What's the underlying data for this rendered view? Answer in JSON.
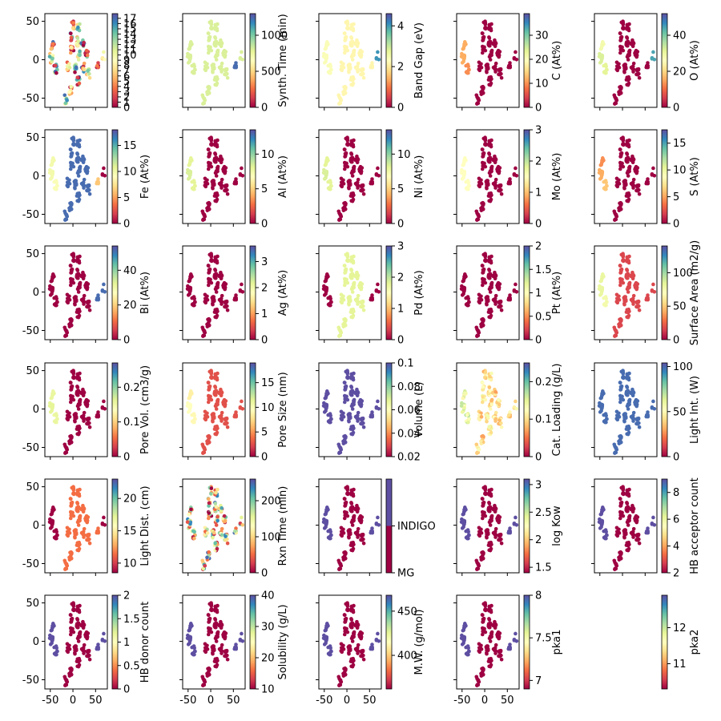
{
  "chart_data": {
    "type": "scatter",
    "x_ticks": [
      -50,
      0,
      50
    ],
    "y_ticks": [
      -50,
      0,
      50
    ],
    "xlim": [
      -62,
      76
    ],
    "ylim": [
      -62,
      60
    ],
    "panels": [
      {
        "label": "",
        "cmin": 0,
        "cmax": 17.9,
        "ticks": [
          0,
          1,
          2,
          3,
          4,
          5,
          6,
          7,
          8,
          9,
          10,
          11,
          12,
          13,
          14,
          15,
          16,
          17
        ],
        "mode": "cluster"
      },
      {
        "label": "Synth. Time (min)",
        "cmin": 0,
        "cmax": 1300,
        "ticks": [
          0,
          500,
          1000
        ],
        "mode": "const",
        "values": [
          0.62,
          0.62,
          0.62,
          0.62,
          0.62,
          0.62,
          0.62,
          0.62,
          0.62,
          0.62,
          0.62,
          0.62,
          0.62,
          0.62,
          0.62,
          0.62,
          0.62,
          0.62,
          0.95,
          0.62
        ]
      },
      {
        "label": "Band Gap (eV)",
        "cmin": 0,
        "cmax": 4.6,
        "ticks": [
          0,
          2,
          4
        ],
        "mode": "const",
        "values": [
          0.47,
          0.47,
          0.47,
          0.47,
          0.47,
          0.47,
          0.47,
          0.47,
          0.47,
          0.47,
          0.47,
          0.47,
          0.47,
          0.47,
          0.47,
          0.52,
          0.52,
          0.52,
          0.47,
          0.88
        ]
      },
      {
        "label": "C (At%)",
        "cmin": 0,
        "cmax": 39,
        "ticks": [
          0,
          10,
          20,
          30
        ],
        "mode": "const",
        "values": [
          0,
          0,
          0,
          0,
          0,
          0,
          0,
          0,
          0,
          0,
          0,
          0,
          0,
          0,
          0,
          0.3,
          0.3,
          0.25,
          0,
          0
        ]
      },
      {
        "label": "O (At%)",
        "cmin": 0,
        "cmax": 52,
        "ticks": [
          0,
          20,
          40
        ],
        "mode": "const",
        "values": [
          0,
          0,
          0,
          0,
          0,
          0,
          0,
          0,
          0,
          0,
          0,
          0,
          0,
          0,
          0,
          0.55,
          0.62,
          0.6,
          0,
          0.85
        ]
      },
      {
        "label": "Fe (At%)",
        "cmin": 0,
        "cmax": 18,
        "ticks": [
          0,
          5,
          10,
          15
        ],
        "mode": "const",
        "values": [
          0.95,
          0.95,
          0.95,
          0.95,
          0.95,
          0.95,
          0.95,
          0.95,
          0.95,
          0.95,
          0.95,
          0.95,
          0.95,
          0.95,
          0.95,
          0.55,
          0.55,
          0.52,
          0.35,
          0
        ]
      },
      {
        "label": "Al (At%)",
        "cmin": 0,
        "cmax": 13.5,
        "ticks": [
          0,
          5,
          10
        ],
        "mode": "const",
        "values": [
          0,
          0,
          0,
          0,
          0,
          0,
          0,
          0,
          0,
          0,
          0,
          0,
          0,
          0,
          0,
          0.6,
          0.62,
          0.6,
          0,
          0
        ]
      },
      {
        "label": "Ni (At%)",
        "cmin": 0,
        "cmax": 13.5,
        "ticks": [
          0,
          5,
          10
        ],
        "mode": "const",
        "values": [
          0,
          0,
          0,
          0,
          0,
          0,
          0,
          0,
          0,
          0,
          0,
          0,
          0,
          0,
          0,
          0.6,
          0.62,
          0.6,
          0,
          0
        ]
      },
      {
        "label": "Mo (At%)",
        "cmin": 0,
        "cmax": 3,
        "ticks": [
          0,
          1,
          2,
          3
        ],
        "mode": "const",
        "values": [
          0,
          0,
          0,
          0,
          0,
          0,
          0,
          0,
          0,
          0,
          0,
          0,
          0,
          0,
          0,
          0.5,
          0.5,
          0.5,
          0,
          0
        ]
      },
      {
        "label": "S (At%)",
        "cmin": 0,
        "cmax": 17.5,
        "ticks": [
          0,
          5,
          10,
          15
        ],
        "mode": "const",
        "values": [
          0,
          0,
          0,
          0,
          0,
          0,
          0,
          0,
          0,
          0,
          0,
          0,
          0,
          0,
          0,
          0.25,
          0.3,
          0.35,
          0,
          0
        ]
      },
      {
        "label": "Bi (At%)",
        "cmin": 0,
        "cmax": 54,
        "ticks": [
          0,
          20,
          40
        ],
        "mode": "const",
        "values": [
          0,
          0,
          0,
          0,
          0,
          0,
          0,
          0,
          0,
          0,
          0,
          0,
          0,
          0,
          0,
          0,
          0,
          0,
          0.95,
          0.95
        ]
      },
      {
        "label": "Ag (At%)",
        "cmin": 0,
        "cmax": 3.6,
        "ticks": [
          0,
          1,
          2,
          3
        ],
        "mode": "const",
        "values": [
          0,
          0,
          0,
          0,
          0,
          0,
          0,
          0,
          0,
          0,
          0,
          0,
          0,
          0,
          0,
          0,
          0,
          0,
          0,
          0
        ]
      },
      {
        "label": "Pd (At%)",
        "cmin": 0,
        "cmax": 3,
        "ticks": [
          0,
          1,
          2,
          3
        ],
        "mode": "const",
        "values": [
          0.6,
          0.6,
          0.6,
          0.6,
          0.6,
          0.6,
          0.6,
          0.6,
          0.6,
          0.6,
          0.6,
          0.6,
          0.6,
          0.6,
          0.6,
          0,
          0,
          0,
          0,
          0
        ]
      },
      {
        "label": "Pt (At%)",
        "cmin": 0,
        "cmax": 2,
        "ticks": [
          0,
          0.5,
          1,
          1.5,
          2
        ],
        "mode": "const",
        "values": [
          0,
          0,
          0,
          0,
          0,
          0,
          0,
          0,
          0,
          0,
          0,
          0,
          0,
          0,
          0,
          0,
          0,
          0,
          0,
          0
        ]
      },
      {
        "label": "Surface Area (m2/g)",
        "cmin": 0,
        "cmax": 140,
        "ticks": [
          0,
          50,
          100
        ],
        "mode": "const",
        "values": [
          0.12,
          0.12,
          0.12,
          0.12,
          0.12,
          0.12,
          0.12,
          0.12,
          0.12,
          0.12,
          0.12,
          0.12,
          0.12,
          0.12,
          0.12,
          0.58,
          0.58,
          0.55,
          0.12,
          0.12
        ]
      },
      {
        "label": "Pore Vol. (cm3/g)",
        "cmin": 0,
        "cmax": 0.27,
        "ticks": [
          0,
          0.1,
          0.2
        ],
        "mode": "const",
        "values": [
          0,
          0,
          0,
          0,
          0,
          0,
          0,
          0,
          0,
          0,
          0,
          0,
          0,
          0,
          0,
          0.58,
          0.6,
          0.58,
          0,
          0
        ]
      },
      {
        "label": "Pore Size (nm)",
        "cmin": 0,
        "cmax": 19,
        "ticks": [
          0,
          5,
          10,
          15
        ],
        "mode": "const",
        "values": [
          0.14,
          0.14,
          0.14,
          0.14,
          0.14,
          0.14,
          0.14,
          0.14,
          0.14,
          0.14,
          0.14,
          0.14,
          0.14,
          0.14,
          0.14,
          0.45,
          0.5,
          0.48,
          0.14,
          0.14
        ]
      },
      {
        "label": "Volume (L)",
        "cmin": 0.02,
        "cmax": 0.1,
        "ticks": [
          0.02,
          0.04,
          0.06,
          0.08,
          0.1
        ],
        "mode": "const",
        "values": [
          1,
          1,
          1,
          1,
          1,
          1,
          1,
          1,
          1,
          1,
          1,
          1,
          1,
          1,
          1,
          1,
          1,
          1,
          1,
          1
        ]
      },
      {
        "label": "Cat. Loading (g/L)",
        "cmin": 0,
        "cmax": 0.25,
        "ticks": [
          0,
          0.1,
          0.2
        ],
        "mode": "const",
        "values": [
          0.38,
          0.45,
          0.5,
          0.42,
          0.36,
          0.48,
          0.4,
          0.44,
          0.38,
          0.46,
          0.42,
          0.4,
          0.48,
          0.36,
          0.44,
          0.55,
          0.58,
          0.6,
          0.4,
          0.45
        ]
      },
      {
        "label": "Light Int. (W)",
        "cmin": 0,
        "cmax": 104,
        "ticks": [
          0,
          50,
          100
        ],
        "mode": "const",
        "values": [
          0.95,
          0.95,
          0.95,
          0.95,
          0.95,
          0.95,
          0.95,
          0.95,
          0.95,
          0.95,
          0.95,
          0.95,
          0.95,
          0.95,
          0.95,
          0.95,
          0.95,
          0.95,
          0.95,
          0.95
        ]
      },
      {
        "label": "Light Dist. (cm)",
        "cmin": 8.5,
        "cmax": 23,
        "ticks": [
          10,
          15,
          20
        ],
        "mode": "const",
        "values": [
          0.2,
          0.2,
          0.2,
          0.2,
          0.2,
          0.2,
          0.2,
          0.2,
          0.2,
          0.2,
          0.2,
          0.2,
          0.2,
          0.2,
          0.2,
          0,
          0,
          0,
          0.2,
          0
        ]
      },
      {
        "label": "Rxn Time (min)",
        "cmin": 0,
        "cmax": 260,
        "ticks": [
          0,
          100,
          200
        ],
        "mode": "cluster"
      },
      {
        "label": "",
        "cmin": 0,
        "cmax": 1,
        "ticks": [],
        "categories": [
          "MG",
          "INDIGO"
        ],
        "mode": "const",
        "values": [
          0,
          0,
          0,
          0,
          0,
          0,
          0,
          0,
          0,
          0,
          0,
          0,
          0,
          0,
          0,
          1,
          1,
          1,
          1,
          1
        ]
      },
      {
        "label": "log Kow",
        "cmin": 1.4,
        "cmax": 3.1,
        "ticks": [
          1.5,
          2,
          2.5,
          3
        ],
        "mode": "const",
        "values": [
          0,
          0,
          0,
          0,
          0,
          0,
          0,
          0,
          0,
          0,
          0,
          0,
          0,
          0,
          0,
          1,
          1,
          1,
          1,
          1
        ]
      },
      {
        "label": "HB acceptor count",
        "cmin": 2,
        "cmax": 9,
        "ticks": [
          2,
          4,
          6,
          8
        ],
        "mode": "const",
        "values": [
          0,
          0,
          0,
          0,
          0,
          0,
          0,
          0,
          0,
          0,
          0,
          0,
          0,
          0,
          0,
          1,
          1,
          1,
          1,
          1
        ]
      },
      {
        "label": "HB donor count",
        "cmin": 0,
        "cmax": 2,
        "ticks": [
          0,
          0.5,
          1,
          1.5,
          2
        ],
        "mode": "const",
        "values": [
          0,
          0,
          0,
          0,
          0,
          0,
          0,
          0,
          0,
          0,
          0,
          0,
          0,
          0,
          0,
          1,
          1,
          1,
          1,
          1
        ]
      },
      {
        "label": "Solubility (g/L)",
        "cmin": 10,
        "cmax": 40,
        "ticks": [
          10,
          20,
          30,
          40
        ],
        "mode": "const",
        "values": [
          0,
          0,
          0,
          0,
          0,
          0,
          0,
          0,
          0,
          0,
          0,
          0,
          0,
          0,
          0,
          1,
          1,
          1,
          1,
          1
        ]
      },
      {
        "label": "M.W. (g/mol)",
        "cmin": 362,
        "cmax": 468,
        "ticks": [
          400,
          450
        ],
        "mode": "const",
        "values": [
          0,
          0,
          0,
          0,
          0,
          0,
          0,
          0,
          0,
          0,
          0,
          0,
          0,
          0,
          0,
          1,
          1,
          1,
          1,
          1
        ]
      },
      {
        "label": "pka1",
        "cmin": 6.9,
        "cmax": 8,
        "ticks": [
          7,
          7.5,
          8
        ],
        "mode": "const",
        "values": [
          0,
          0,
          0,
          0,
          0,
          0,
          0,
          0,
          0,
          0,
          0,
          0,
          0,
          0,
          0,
          1,
          1,
          1,
          1,
          1
        ]
      },
      {
        "label": "pka2",
        "cmin": 10.3,
        "cmax": 12.9,
        "ticks": [
          11,
          12
        ],
        "mode": "hidden"
      }
    ],
    "clusters": [
      {
        "x": 0,
        "y": 44,
        "n": 8
      },
      {
        "x": 12,
        "y": 42,
        "n": 10
      },
      {
        "x": -5,
        "y": 30,
        "n": 8
      },
      {
        "x": 10,
        "y": 24,
        "n": 10
      },
      {
        "x": 22,
        "y": 20,
        "n": 10
      },
      {
        "x": -2,
        "y": 12,
        "n": 10
      },
      {
        "x": 14,
        "y": 6,
        "n": 10
      },
      {
        "x": 30,
        "y": 8,
        "n": 10
      },
      {
        "x": -10,
        "y": -8,
        "n": 10
      },
      {
        "x": 6,
        "y": -12,
        "n": 10
      },
      {
        "x": 22,
        "y": -10,
        "n": 10
      },
      {
        "x": 34,
        "y": -18,
        "n": 10
      },
      {
        "x": 12,
        "y": -28,
        "n": 10
      },
      {
        "x": -5,
        "y": -40,
        "n": 10
      },
      {
        "x": -15,
        "y": -52,
        "n": 10
      },
      {
        "x": -45,
        "y": 18,
        "n": 10
      },
      {
        "x": -48,
        "y": 2,
        "n": 12
      },
      {
        "x": -38,
        "y": -12,
        "n": 10
      },
      {
        "x": 55,
        "y": -5,
        "n": 5
      },
      {
        "x": 68,
        "y": 5,
        "n": 4
      }
    ]
  }
}
